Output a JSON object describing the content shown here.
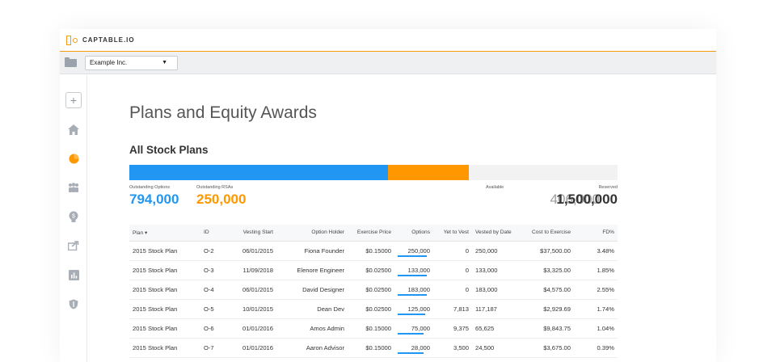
{
  "brand": {
    "name": "CAPTABLE.IO"
  },
  "company_select": {
    "value": "Example Inc."
  },
  "page_title": "Plans and Equity Awards",
  "section_title": "All Stock Plans",
  "summary": {
    "outstanding_options_label": "Outstanding Options",
    "outstanding_options": "794,000",
    "outstanding_rsas_label": "Outstanding RSAs",
    "outstanding_rsas": "250,000",
    "available_label": "Available",
    "available": "406,000",
    "reserved_label": "Reserved",
    "reserved": "1,500,000",
    "bar_fractions": {
      "options": 0.529,
      "rsas": 0.167
    }
  },
  "colors": {
    "accent": "#f39c12",
    "options": "#2196f3",
    "rsas": "#ff9800",
    "link": "#1976d2"
  },
  "sidebar_icons": [
    "plus-icon",
    "home-icon",
    "pie-chart-icon",
    "people-icon",
    "lightbulb-icon",
    "share-icon",
    "bar-chart-icon",
    "shield-icon"
  ],
  "table": {
    "columns": [
      "Plan ▾",
      "ID",
      "Vesting Start",
      "Option Holder",
      "Exercise Price",
      "Options",
      "Yet to Vest",
      "Vested by Date",
      "Cost to Exercise",
      "FD%"
    ],
    "rows": [
      {
        "plan": "2015 Stock Plan",
        "id": "O-2",
        "vesting_start": "06/01/2015",
        "holder": "Fiona Founder",
        "price": "$0.15000",
        "options": "250,000",
        "options_fill": 1.0,
        "yet_to_vest": "0",
        "vested": "250,000",
        "cost": "$37,500.00",
        "fd": "3.48%"
      },
      {
        "plan": "2015 Stock Plan",
        "id": "O-3",
        "vesting_start": "11/09/2018",
        "holder": "Elenore Engineer",
        "price": "$0.02500",
        "options": "133,000",
        "options_fill": 1.0,
        "yet_to_vest": "0",
        "vested": "133,000",
        "cost": "$3,325.00",
        "fd": "1.85%"
      },
      {
        "plan": "2015 Stock Plan",
        "id": "O-4",
        "vesting_start": "06/01/2015",
        "holder": "David Designer",
        "price": "$0.02500",
        "options": "183,000",
        "options_fill": 1.0,
        "yet_to_vest": "0",
        "vested": "183,000",
        "cost": "$4,575.00",
        "fd": "2.55%"
      },
      {
        "plan": "2015 Stock Plan",
        "id": "O-5",
        "vesting_start": "10/01/2015",
        "holder": "Dean Dev",
        "price": "$0.02500",
        "options": "125,000",
        "options_fill": 0.94,
        "yet_to_vest": "7,813",
        "vested": "117,187",
        "cost": "$2,929.69",
        "fd": "1.74%"
      },
      {
        "plan": "2015 Stock Plan",
        "id": "O-6",
        "vesting_start": "01/01/2016",
        "holder": "Amos Admin",
        "price": "$0.15000",
        "options": "75,000",
        "options_fill": 0.875,
        "yet_to_vest": "9,375",
        "vested": "65,625",
        "cost": "$9,843.75",
        "fd": "1.04%"
      },
      {
        "plan": "2015 Stock Plan",
        "id": "O-7",
        "vesting_start": "01/01/2016",
        "holder": "Aaron Advisor",
        "price": "$0.15000",
        "options": "28,000",
        "options_fill": 0.875,
        "yet_to_vest": "3,500",
        "vested": "24,500",
        "cost": "$3,675.00",
        "fd": "0.39%"
      }
    ]
  }
}
